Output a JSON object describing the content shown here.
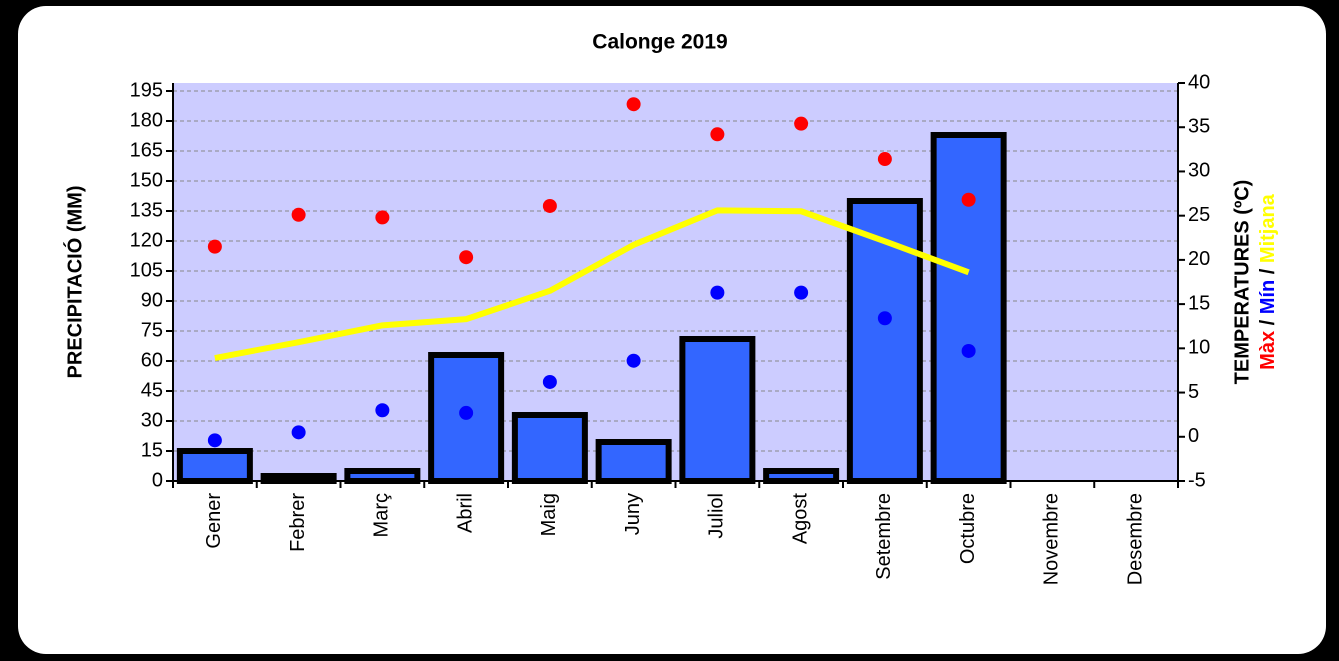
{
  "chart_data": {
    "type": "bar",
    "title": "Calonge 2019",
    "y_label": "PRECIPITACIÓ (MM)",
    "y2_label": "TEMPERATURES (ºC)",
    "y2_label_separator": "/",
    "categories": [
      "Gener",
      "Febrer",
      "Març",
      "Abril",
      "Maig",
      "Juny",
      "Juliol",
      "Agost",
      "Setembre",
      "Octubre",
      "Novembre",
      "Desembre"
    ],
    "series": [
      {
        "name": "PRECIPITACIÓ (MM)",
        "type": "bar",
        "color": "#3366ff",
        "values": [
          15,
          2.5,
          5,
          63,
          33,
          19.5,
          71,
          5,
          140,
          173,
          null,
          null
        ]
      },
      {
        "name": "Màx",
        "type": "scatter",
        "axis": "y2",
        "color": "#ff0000",
        "values": [
          21.5,
          25.1,
          24.8,
          20.3,
          26.1,
          37.6,
          34.2,
          35.4,
          31.4,
          26.8,
          null,
          null
        ]
      },
      {
        "name": "Mín",
        "type": "scatter",
        "axis": "y2",
        "color": "#0000ff",
        "values": [
          -0.4,
          0.5,
          3.0,
          2.7,
          6.2,
          8.6,
          16.3,
          16.3,
          13.4,
          9.7,
          null,
          null
        ]
      },
      {
        "name": "Mitjana",
        "type": "line",
        "axis": "y2",
        "color": "#ffff00",
        "values": [
          8.9,
          10.7,
          12.6,
          13.3,
          16.5,
          21.7,
          25.6,
          25.5,
          22.1,
          18.6,
          null,
          null
        ]
      }
    ],
    "ylim": [
      0,
      199
    ],
    "yticks": [
      0,
      15,
      30,
      45,
      60,
      75,
      90,
      105,
      120,
      135,
      150,
      165,
      180,
      195
    ],
    "y2lim": [
      -5,
      40
    ],
    "y2ticks": [
      -5,
      0,
      5,
      10,
      15,
      20,
      25,
      30,
      35,
      40
    ],
    "grid": true,
    "plot_background": "#ccccff"
  }
}
